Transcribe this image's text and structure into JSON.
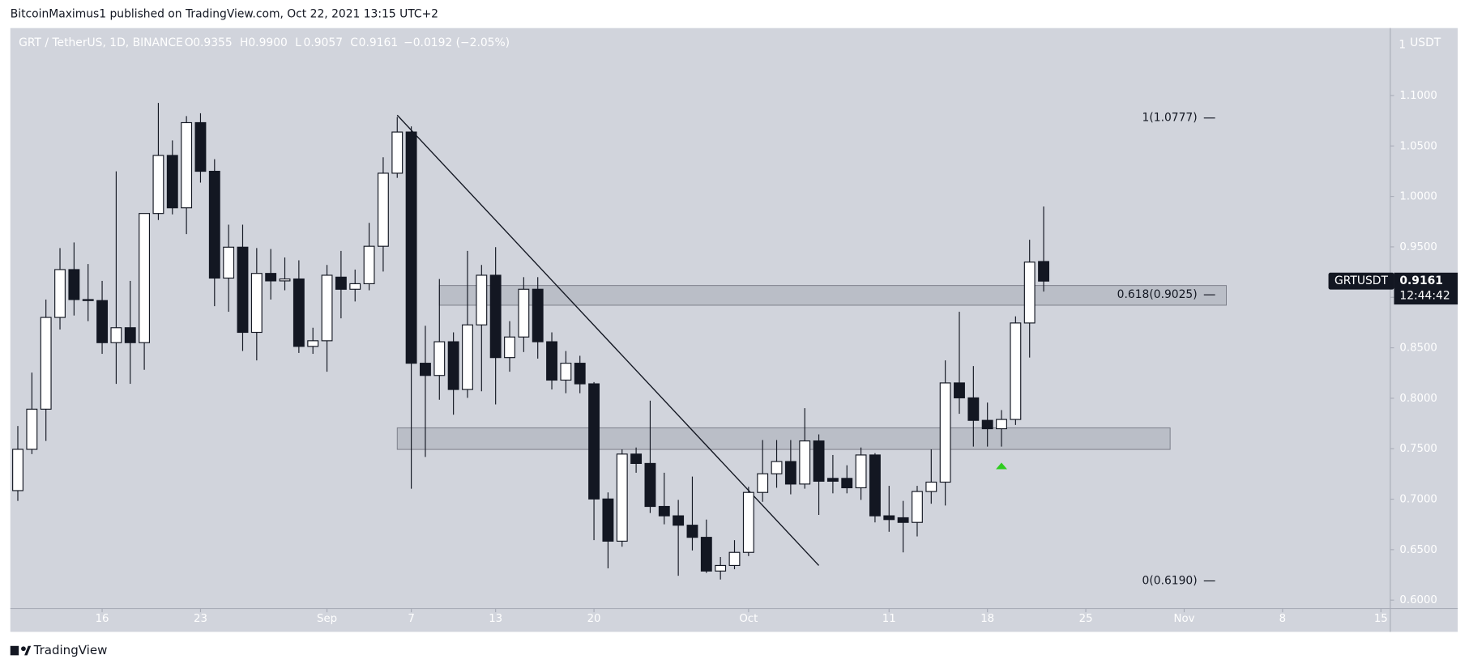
{
  "header": {
    "byline": "BitcoinMaximus1 published on TradingView.com, Oct 22, 2021 13:15 UTC+2"
  },
  "footer": {
    "brand": "TradingView"
  },
  "chart_data": {
    "type": "candlestick",
    "legend": {
      "symbol": "GRT / TetherUS, 1D, BINANCE",
      "fields": [
        {
          "key": "O",
          "text": "0.9355"
        },
        {
          "key": "H",
          "text": "0.9900"
        },
        {
          "key": "L",
          "text": "0.9057"
        },
        {
          "key": "C",
          "text": "0.9161"
        }
      ],
      "change": "−0.0192 (−2.05%)"
    },
    "axis_unit": "USDT",
    "currency_badge": "1",
    "categories": [
      "Aug 10",
      "Aug 11",
      "Aug 12",
      "Aug 13",
      "Aug 14",
      "Aug 15",
      "Aug 16",
      "Aug 17",
      "Aug 18",
      "Aug 19",
      "Aug 20",
      "Aug 21",
      "Aug 22",
      "Aug 23",
      "Aug 24",
      "Aug 25",
      "Aug 26",
      "Aug 27",
      "Aug 28",
      "Aug 29",
      "Aug 30",
      "Aug 31",
      "Sep 1",
      "Sep 2",
      "Sep 3",
      "Sep 4",
      "Sep 5",
      "Sep 6",
      "Sep 7",
      "Sep 8",
      "Sep 9",
      "Sep 10",
      "Sep 11",
      "Sep 12",
      "Sep 13",
      "Sep 14",
      "Sep 15",
      "Sep 16",
      "Sep 17",
      "Sep 18",
      "Sep 19",
      "Sep 20",
      "Sep 21",
      "Sep 22",
      "Sep 23",
      "Sep 24",
      "Sep 25",
      "Sep 26",
      "Sep 27",
      "Sep 28",
      "Sep 29",
      "Sep 30",
      "Oct 1",
      "Oct 2",
      "Oct 3",
      "Oct 4",
      "Oct 5",
      "Oct 6",
      "Oct 7",
      "Oct 8",
      "Oct 9",
      "Oct 10",
      "Oct 11",
      "Oct 12",
      "Oct 13",
      "Oct 14",
      "Oct 15",
      "Oct 16",
      "Oct 17",
      "Oct 18",
      "Oct 19",
      "Oct 20",
      "Oct 21",
      "Oct 22"
    ],
    "open": [
      0.7085,
      0.7494,
      0.7892,
      0.8801,
      0.9275,
      0.8978,
      0.8968,
      0.8551,
      0.8699,
      0.8551,
      0.9831,
      1.0406,
      0.9887,
      1.0731,
      1.0249,
      0.9191,
      0.9497,
      0.8653,
      0.9237,
      0.9163,
      0.9182,
      0.8514,
      0.857,
      0.92,
      0.908,
      0.9135,
      0.9506,
      1.023,
      1.0638,
      0.8347,
      0.8226,
      0.856,
      0.8087,
      0.8727,
      0.9219,
      0.8403,
      0.8607,
      0.908,
      0.856,
      0.818,
      0.8347,
      0.8143,
      0.7002,
      0.6584,
      0.7447,
      0.7354,
      0.6928,
      0.6835,
      0.6742,
      0.6622,
      0.6288,
      0.6343,
      0.6473,
      0.7067,
      0.7252,
      0.7373,
      0.715,
      0.7577,
      0.7206,
      0.7206,
      0.7113,
      0.7438,
      0.6835,
      0.6816,
      0.677,
      0.7076,
      0.7169,
      0.8152,
      0.8004,
      0.7781,
      0.7698,
      0.779,
      0.8746,
      0.9355
    ],
    "high": [
      0.7725,
      0.8254,
      0.8978,
      0.9488,
      0.9544,
      0.933,
      0.9163,
      1.0249,
      0.9163,
      0.9831,
      1.0926,
      1.0555,
      1.0796,
      1.0824,
      1.0369,
      0.972,
      0.972,
      0.9488,
      0.9479,
      0.9395,
      0.9367,
      0.8699,
      0.9321,
      0.946,
      0.9275,
      0.9738,
      1.0388,
      1.0787,
      1.0694,
      0.8718,
      0.9182,
      0.8653,
      0.946,
      0.9321,
      0.9497,
      0.8764,
      0.92,
      0.92,
      0.8653,
      0.8468,
      0.8421,
      0.8161,
      0.7067,
      0.7494,
      0.7512,
      0.7976,
      0.7262,
      0.6993,
      0.7224,
      0.6798,
      0.6427,
      0.6594,
      0.7122,
      0.7586,
      0.7586,
      0.7586,
      0.7902,
      0.7642,
      0.7438,
      0.7336,
      0.7512,
      0.7456,
      0.7132,
      0.6983,
      0.7132,
      0.7494,
      0.8375,
      0.8857,
      0.8319,
      0.7957,
      0.7883,
      0.8811,
      0.9571,
      0.99
    ],
    "low": [
      0.6983,
      0.7447,
      0.7577,
      0.8681,
      0.882,
      0.8764,
      0.844,
      0.8143,
      0.8143,
      0.8282,
      0.9766,
      0.9822,
      0.9627,
      1.0137,
      0.8913,
      0.8857,
      0.8468,
      0.8375,
      0.8978,
      0.907,
      0.8449,
      0.844,
      0.8263,
      0.8792,
      0.8959,
      0.907,
      0.9256,
      1.0184,
      0.7104,
      0.7419,
      0.7985,
      0.7837,
      0.8004,
      0.8069,
      0.7939,
      0.8263,
      0.8458,
      0.8393,
      0.8087,
      0.805,
      0.805,
      0.6594,
      0.6315,
      0.6529,
      0.7262,
      0.6863,
      0.6751,
      0.6241,
      0.6492,
      0.6269,
      0.6204,
      0.6306,
      0.6436,
      0.6974,
      0.7113,
      0.7048,
      0.7104,
      0.6844,
      0.7058,
      0.7058,
      0.6993,
      0.677,
      0.6677,
      0.6473,
      0.6631,
      0.6955,
      0.6937,
      0.7846,
      0.7521,
      0.7521,
      0.7521,
      0.7735,
      0.8403,
      0.9057
    ],
    "close": [
      0.7494,
      0.7892,
      0.8801,
      0.9275,
      0.8978,
      0.8968,
      0.8551,
      0.8699,
      0.8551,
      0.9831,
      1.0406,
      0.9887,
      1.0731,
      1.0249,
      0.9191,
      0.9497,
      0.8653,
      0.9237,
      0.9163,
      0.9182,
      0.8514,
      0.857,
      0.9219,
      0.908,
      0.9135,
      0.9506,
      1.023,
      1.0638,
      0.8347,
      0.8226,
      0.856,
      0.8087,
      0.8727,
      0.9219,
      0.8403,
      0.8607,
      0.908,
      0.856,
      0.818,
      0.8347,
      0.8143,
      0.7002,
      0.6584,
      0.7447,
      0.7354,
      0.6928,
      0.6835,
      0.6742,
      0.6622,
      0.6288,
      0.6343,
      0.6473,
      0.7067,
      0.7252,
      0.7373,
      0.715,
      0.7577,
      0.7178,
      0.7178,
      0.7113,
      0.7438,
      0.6835,
      0.6798,
      0.677,
      0.7076,
      0.7169,
      0.8152,
      0.8004,
      0.7781,
      0.7698,
      0.779,
      0.8746,
      0.9349,
      0.9161
    ],
    "up_color": "#ffffff",
    "down_color": "#131722",
    "ylim": [
      0.5917,
      1.1668
    ],
    "yticks": [
      {
        "value": 0.6,
        "label": "0.6000"
      },
      {
        "value": 0.65,
        "label": "0.6500"
      },
      {
        "value": 0.7,
        "label": "0.7000"
      },
      {
        "value": 0.75,
        "label": "0.7500"
      },
      {
        "value": 0.8,
        "label": "0.8000"
      },
      {
        "value": 0.85,
        "label": "0.8500"
      },
      {
        "value": 0.9,
        "label": "0.9000"
      },
      {
        "value": 0.95,
        "label": "0.9500"
      },
      {
        "value": 1,
        "label": "1.0000"
      },
      {
        "value": 1.05,
        "label": "1.0500"
      },
      {
        "value": 1.1,
        "label": "1.1000"
      }
    ],
    "xticks": [
      {
        "value": "Aug 16",
        "label": "16"
      },
      {
        "value": "Aug 23",
        "label": "23"
      },
      {
        "value": "Sep 1",
        "label": "Sep"
      },
      {
        "value": "Sep 7",
        "label": "7"
      },
      {
        "value": "Sep 13",
        "label": "13"
      },
      {
        "value": "Sep 20",
        "label": "20"
      },
      {
        "value": "Oct 1",
        "label": "Oct"
      },
      {
        "value": "Oct 11",
        "label": "11"
      },
      {
        "value": "Oct 18",
        "label": "18"
      },
      {
        "value": "Oct 25",
        "label": "25"
      },
      {
        "value": "Nov 1",
        "label": "Nov"
      },
      {
        "value": "Nov 8",
        "label": "8"
      },
      {
        "value": "Nov 15",
        "label": "15"
      }
    ],
    "fib_levels": [
      {
        "label": "1(1.0777)",
        "value": 1.0777
      },
      {
        "label": "0.618(0.9025)",
        "value": 0.9025
      },
      {
        "label": "0(0.6190)",
        "value": 0.619
      }
    ],
    "zones": [
      {
        "x": [
          "Sep 9",
          "Nov 4"
        ],
        "y": [
          0.8922,
          0.9117
        ]
      },
      {
        "x": [
          "Sep 6",
          "Oct 31"
        ],
        "y": [
          0.7493,
          0.7707
        ]
      }
    ],
    "trendline": {
      "x": [
        "Sep 6",
        "Oct 6"
      ],
      "y": [
        1.0805,
        0.6343
      ]
    },
    "marker": {
      "x": "Oct 19",
      "y": 0.7325,
      "color": "#2ecc1f"
    },
    "price_tag": {
      "symbol": "GRTUSDT",
      "price": "0.9161",
      "countdown": "12:44:42"
    }
  }
}
